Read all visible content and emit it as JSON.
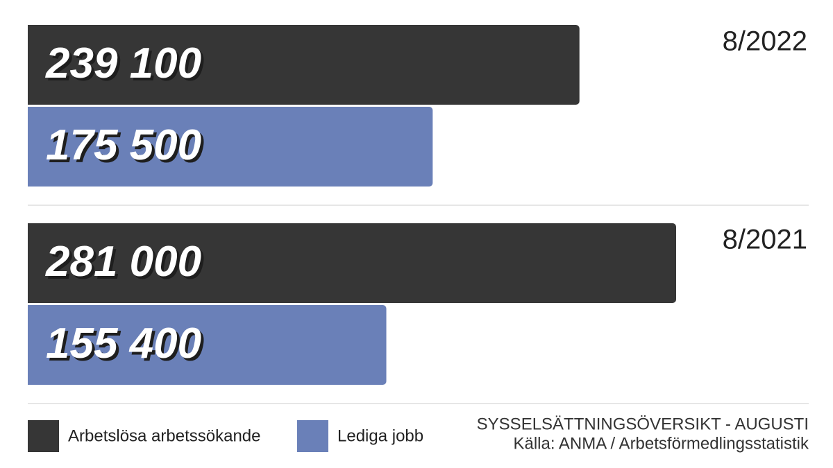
{
  "chart_data": {
    "type": "bar",
    "orientation": "horizontal",
    "title": "SYSSELSÄTTNINGSÖVERSIKT - AUGUSTI",
    "source": "Källa: ANMA / Arbetsförmedlingsstatistik",
    "categories": [
      "8/2022",
      "8/2021"
    ],
    "series": [
      {
        "name": "Arbetslösa arbetssökande",
        "color": "#363636",
        "values": [
          239100,
          281000
        ],
        "value_labels": [
          "239 100",
          "281 000"
        ]
      },
      {
        "name": "Lediga jobb",
        "color": "#6a80b8",
        "values": [
          175500,
          155400
        ],
        "value_labels": [
          "175 500",
          "155 400"
        ]
      }
    ]
  }
}
